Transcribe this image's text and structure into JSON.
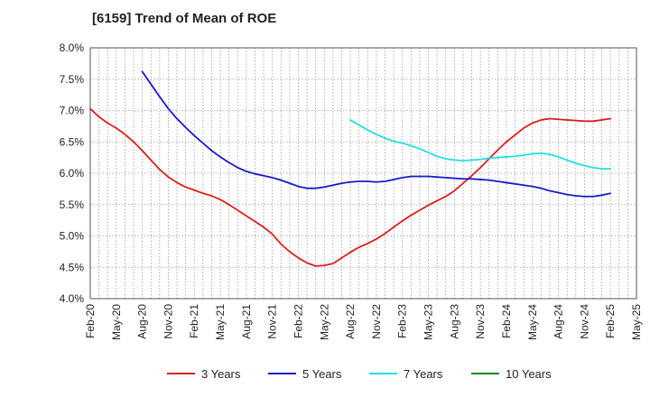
{
  "chart_data": {
    "type": "line",
    "title": "[6159]  Trend of Mean of ROE",
    "ylim": [
      4.0,
      8.0
    ],
    "y_ticks": [
      "4.0%",
      "4.5%",
      "5.0%",
      "5.5%",
      "6.0%",
      "6.5%",
      "7.0%",
      "7.5%",
      "8.0%"
    ],
    "y_tick_values": [
      4.0,
      4.5,
      5.0,
      5.5,
      6.0,
      6.5,
      7.0,
      7.5,
      8.0
    ],
    "x_ticks": [
      "Feb-20",
      "May-20",
      "Aug-20",
      "Nov-20",
      "Feb-21",
      "May-21",
      "Aug-21",
      "Nov-21",
      "Feb-22",
      "May-22",
      "Aug-22",
      "Nov-22",
      "Feb-23",
      "May-23",
      "Aug-23",
      "Nov-23",
      "Feb-24",
      "May-24",
      "Aug-24",
      "Nov-24",
      "Feb-25",
      "May-25"
    ],
    "grid": true,
    "legend_position": "bottom",
    "series": [
      {
        "name": "3 Years",
        "color": "#dd1e1e",
        "points": [
          [
            "Feb-20",
            7.03
          ],
          [
            "Mar-20",
            6.9
          ],
          [
            "Apr-20",
            6.8
          ],
          [
            "May-20",
            6.72
          ],
          [
            "Jun-20",
            6.62
          ],
          [
            "Jul-20",
            6.5
          ],
          [
            "Aug-20",
            6.36
          ],
          [
            "Sep-20",
            6.21
          ],
          [
            "Oct-20",
            6.06
          ],
          [
            "Nov-20",
            5.94
          ],
          [
            "Dec-20",
            5.85
          ],
          [
            "Jan-21",
            5.78
          ],
          [
            "Feb-21",
            5.73
          ],
          [
            "Mar-21",
            5.68
          ],
          [
            "Apr-21",
            5.64
          ],
          [
            "May-21",
            5.58
          ],
          [
            "Jun-21",
            5.5
          ],
          [
            "Jul-21",
            5.41
          ],
          [
            "Aug-21",
            5.32
          ],
          [
            "Sep-21",
            5.23
          ],
          [
            "Oct-21",
            5.14
          ],
          [
            "Nov-21",
            5.03
          ],
          [
            "Dec-21",
            4.87
          ],
          [
            "Jan-22",
            4.75
          ],
          [
            "Feb-22",
            4.65
          ],
          [
            "Mar-22",
            4.57
          ],
          [
            "Apr-22",
            4.52
          ],
          [
            "May-22",
            4.53
          ],
          [
            "Jun-22",
            4.56
          ],
          [
            "Jul-22",
            4.65
          ],
          [
            "Aug-22",
            4.74
          ],
          [
            "Sep-22",
            4.82
          ],
          [
            "Oct-22",
            4.88
          ],
          [
            "Nov-22",
            4.95
          ],
          [
            "Dec-22",
            5.04
          ],
          [
            "Jan-23",
            5.14
          ],
          [
            "Feb-23",
            5.24
          ],
          [
            "Mar-23",
            5.33
          ],
          [
            "Apr-23",
            5.41
          ],
          [
            "May-23",
            5.49
          ],
          [
            "Jun-23",
            5.56
          ],
          [
            "Jul-23",
            5.63
          ],
          [
            "Aug-23",
            5.72
          ],
          [
            "Sep-23",
            5.84
          ],
          [
            "Oct-23",
            5.96
          ],
          [
            "Nov-23",
            6.09
          ],
          [
            "Dec-23",
            6.23
          ],
          [
            "Jan-24",
            6.37
          ],
          [
            "Feb-24",
            6.5
          ],
          [
            "Mar-24",
            6.61
          ],
          [
            "Apr-24",
            6.72
          ],
          [
            "May-24",
            6.8
          ],
          [
            "Jun-24",
            6.85
          ],
          [
            "Jul-24",
            6.87
          ],
          [
            "Aug-24",
            6.86
          ],
          [
            "Sep-24",
            6.85
          ],
          [
            "Oct-24",
            6.84
          ],
          [
            "Nov-24",
            6.83
          ],
          [
            "Dec-24",
            6.83
          ],
          [
            "Jan-25",
            6.85
          ],
          [
            "Feb-25",
            6.87
          ]
        ]
      },
      {
        "name": "5 Years",
        "color": "#1a1ac8",
        "points": [
          [
            "Aug-20",
            7.62
          ],
          [
            "Sep-20",
            7.42
          ],
          [
            "Oct-20",
            7.22
          ],
          [
            "Nov-20",
            7.03
          ],
          [
            "Dec-20",
            6.87
          ],
          [
            "Jan-21",
            6.73
          ],
          [
            "Feb-21",
            6.6
          ],
          [
            "Mar-21",
            6.48
          ],
          [
            "Apr-21",
            6.36
          ],
          [
            "May-21",
            6.26
          ],
          [
            "Jun-21",
            6.17
          ],
          [
            "Jul-21",
            6.09
          ],
          [
            "Aug-21",
            6.03
          ],
          [
            "Sep-21",
            5.99
          ],
          [
            "Oct-21",
            5.96
          ],
          [
            "Nov-21",
            5.93
          ],
          [
            "Dec-21",
            5.89
          ],
          [
            "Jan-22",
            5.84
          ],
          [
            "Feb-22",
            5.79
          ],
          [
            "Mar-22",
            5.76
          ],
          [
            "Apr-22",
            5.76
          ],
          [
            "May-22",
            5.78
          ],
          [
            "Jun-22",
            5.81
          ],
          [
            "Jul-22",
            5.84
          ],
          [
            "Aug-22",
            5.86
          ],
          [
            "Sep-22",
            5.87
          ],
          [
            "Oct-22",
            5.87
          ],
          [
            "Nov-22",
            5.86
          ],
          [
            "Dec-22",
            5.87
          ],
          [
            "Jan-23",
            5.9
          ],
          [
            "Feb-23",
            5.93
          ],
          [
            "Mar-23",
            5.95
          ],
          [
            "Apr-23",
            5.95
          ],
          [
            "May-23",
            5.95
          ],
          [
            "Jun-23",
            5.94
          ],
          [
            "Jul-23",
            5.93
          ],
          [
            "Aug-23",
            5.92
          ],
          [
            "Sep-23",
            5.91
          ],
          [
            "Oct-23",
            5.91
          ],
          [
            "Nov-23",
            5.9
          ],
          [
            "Dec-23",
            5.89
          ],
          [
            "Jan-24",
            5.87
          ],
          [
            "Feb-24",
            5.85
          ],
          [
            "Mar-24",
            5.83
          ],
          [
            "Apr-24",
            5.81
          ],
          [
            "May-24",
            5.79
          ],
          [
            "Jun-24",
            5.76
          ],
          [
            "Jul-24",
            5.72
          ],
          [
            "Aug-24",
            5.69
          ],
          [
            "Sep-24",
            5.66
          ],
          [
            "Oct-24",
            5.64
          ],
          [
            "Nov-24",
            5.63
          ],
          [
            "Dec-24",
            5.63
          ],
          [
            "Jan-25",
            5.65
          ],
          [
            "Feb-25",
            5.68
          ]
        ]
      },
      {
        "name": "7 Years",
        "color": "#22e0e0",
        "points": [
          [
            "Aug-22",
            6.85
          ],
          [
            "Sep-22",
            6.77
          ],
          [
            "Oct-22",
            6.69
          ],
          [
            "Nov-22",
            6.62
          ],
          [
            "Dec-22",
            6.56
          ],
          [
            "Jan-23",
            6.51
          ],
          [
            "Feb-23",
            6.48
          ],
          [
            "Mar-23",
            6.44
          ],
          [
            "Apr-23",
            6.39
          ],
          [
            "May-23",
            6.33
          ],
          [
            "Jun-23",
            6.27
          ],
          [
            "Jul-23",
            6.23
          ],
          [
            "Aug-23",
            6.21
          ],
          [
            "Sep-23",
            6.2
          ],
          [
            "Oct-23",
            6.21
          ],
          [
            "Nov-23",
            6.22
          ],
          [
            "Dec-23",
            6.24
          ],
          [
            "Jan-24",
            6.25
          ],
          [
            "Feb-24",
            6.26
          ],
          [
            "Mar-24",
            6.27
          ],
          [
            "Apr-24",
            6.29
          ],
          [
            "May-24",
            6.31
          ],
          [
            "Jun-24",
            6.32
          ],
          [
            "Jul-24",
            6.3
          ],
          [
            "Aug-24",
            6.26
          ],
          [
            "Sep-24",
            6.21
          ],
          [
            "Oct-24",
            6.16
          ],
          [
            "Nov-24",
            6.12
          ],
          [
            "Dec-24",
            6.09
          ],
          [
            "Jan-25",
            6.07
          ],
          [
            "Feb-25",
            6.07
          ]
        ]
      },
      {
        "name": "10 Years",
        "color": "#1a8a1a",
        "points": []
      }
    ]
  }
}
